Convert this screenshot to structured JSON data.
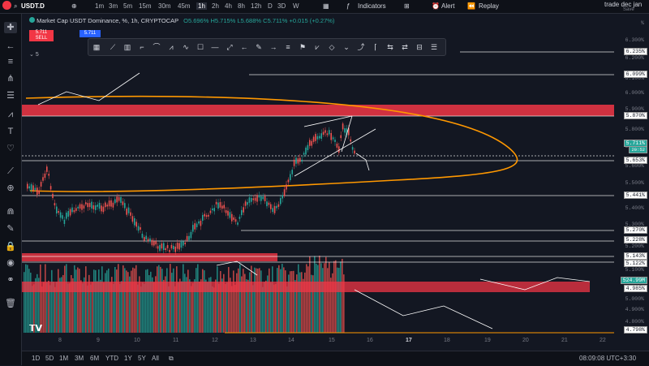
{
  "symbol": "USDT.D",
  "timeframes": [
    "1m",
    "3m",
    "5m",
    "15m",
    "30m",
    "45m",
    "1h",
    "2h",
    "4h",
    "8h",
    "12h",
    "D",
    "3D",
    "W"
  ],
  "active_timeframe": "1h",
  "topbar": {
    "indicators": "Indicators",
    "alert": "Alert",
    "replay": "Replay",
    "user": "trade dec jan",
    "user_sub": "Save"
  },
  "legend": {
    "title": "Market Cap USDT Dominance, %, 1h, CRYPTOCAP",
    "o": "O5.696%",
    "h": "H5.715%",
    "l": "L5.688%",
    "c": "C5.711%",
    "change": "+0.015 (+0.27%)",
    "price_sell": "5.711",
    "sell_label": "SELL",
    "price_buy": "5.711",
    "buy_label": "BUY",
    "layer": "5"
  },
  "price_axis": {
    "pct_symbol": "%",
    "ticks": [
      "6.300%",
      "6.200%",
      "6.100%",
      "6.000%",
      "5.900%",
      "5.800%",
      "5.700%",
      "5.600%",
      "5.500%",
      "5.400%",
      "5.300%",
      "5.200%",
      "5.100%",
      "5.000%",
      "4.900%",
      "4.800%"
    ],
    "boxes": [
      "6.235%",
      "6.099%",
      "5.870%",
      "5.711%",
      "5.653%",
      "5.441%",
      "5.270%",
      "5.228%",
      "5.143%",
      "5.122%",
      "524.99M",
      "4.985%",
      "4.798%"
    ],
    "current_time": "20:52"
  },
  "dates": [
    "8",
    "9",
    "10",
    "11",
    "12",
    "13",
    "14",
    "15",
    "16",
    "17",
    "18",
    "19",
    "20",
    "21",
    "22"
  ],
  "ranges": [
    "1D",
    "5D",
    "1M",
    "3M",
    "6M",
    "YTD",
    "1Y",
    "5Y",
    "All"
  ],
  "clock": "08:09:08 UTC+3:30",
  "colors": {
    "bg": "#131722",
    "up": "#26a69a",
    "down": "#ef5350",
    "zone": "#f23645",
    "orange": "#ff9800"
  }
}
